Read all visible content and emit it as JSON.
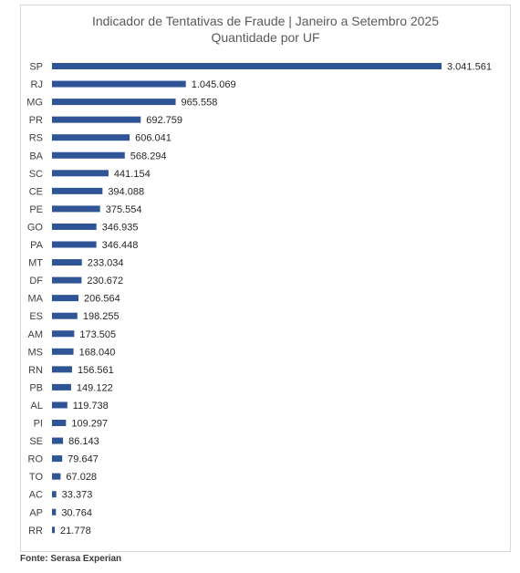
{
  "chart_data": {
    "type": "bar",
    "orientation": "horizontal",
    "title": "Indicador de Tentativas de Fraude | Janeiro a Setembro 2025",
    "subtitle": "Quantidade por UF",
    "bar_color": "#2f5597",
    "categories": [
      "SP",
      "RJ",
      "MG",
      "PR",
      "RS",
      "BA",
      "SC",
      "CE",
      "PE",
      "GO",
      "PA",
      "MT",
      "DF",
      "MA",
      "ES",
      "AM",
      "MS",
      "RN",
      "PB",
      "AL",
      "PI",
      "SE",
      "RO",
      "TO",
      "AC",
      "AP",
      "RR"
    ],
    "values": [
      3041561,
      1045069,
      965558,
      692759,
      606041,
      568294,
      441154,
      394088,
      375554,
      346935,
      346448,
      233034,
      230672,
      206564,
      198255,
      173505,
      168040,
      156561,
      149122,
      119738,
      109297,
      86143,
      79647,
      67028,
      33373,
      30764,
      21778
    ],
    "value_labels": [
      "3.041.561",
      "1.045.069",
      "965.558",
      "692.759",
      "606.041",
      "568.294",
      "441.154",
      "394.088",
      "375.554",
      "346.935",
      "346.448",
      "233.034",
      "230.672",
      "206.564",
      "198.255",
      "173.505",
      "168.040",
      "156.561",
      "149.122",
      "119.738",
      "109.297",
      "86.143",
      "79.647",
      "67.028",
      "33.373",
      "30.764",
      "21.778"
    ]
  },
  "source": "Fonte: Serasa Experian"
}
